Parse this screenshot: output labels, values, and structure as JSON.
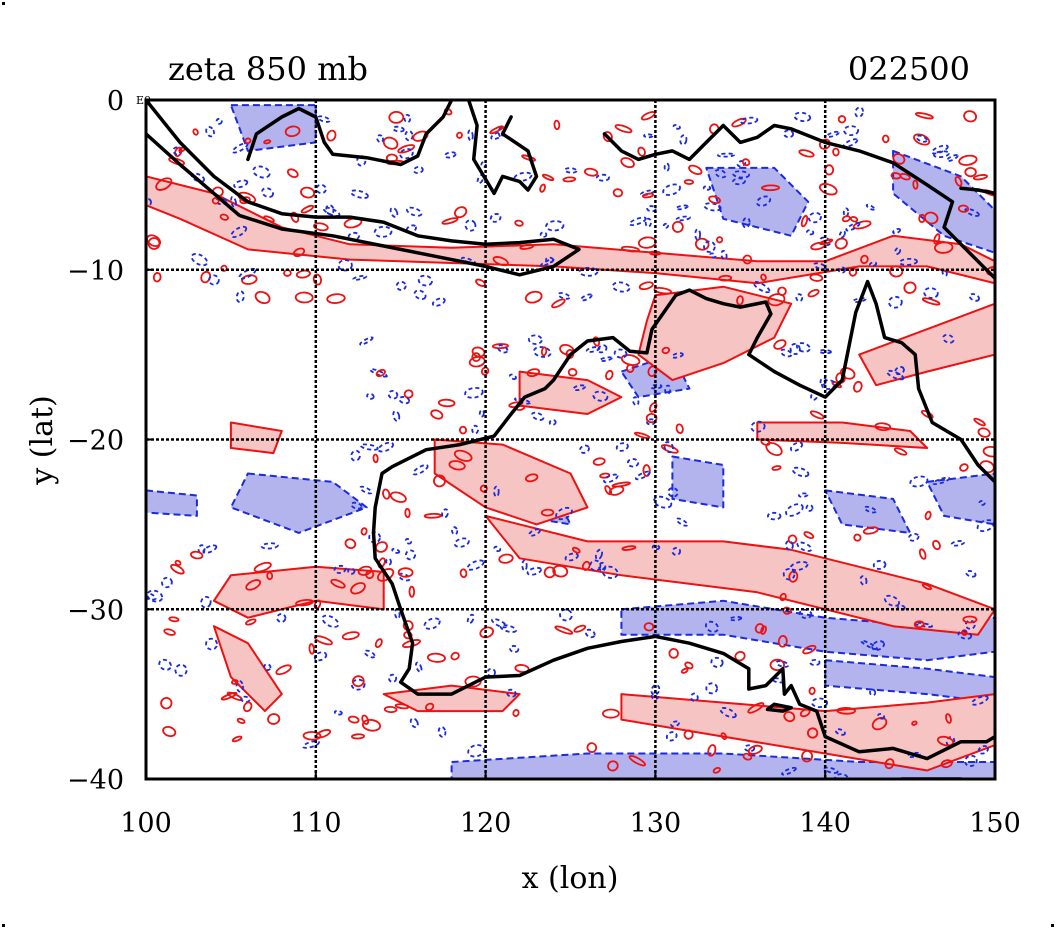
{
  "title_left": "zeta 850 mb",
  "title_right": "022500",
  "corner_label": "E0",
  "colors": {
    "positive_line": "#ee1111",
    "positive_fill": "#f7c4c4",
    "negative_line": "#1a2bdd",
    "negative_fill": "#b3b3ee",
    "coast": "#000000",
    "grid": "#000000"
  },
  "chart_data": {
    "type": "contour-map",
    "xlabel": "x (lon)",
    "ylabel": "y (lat)",
    "xlim": [
      100,
      150
    ],
    "ylim": [
      -40,
      0
    ],
    "xticks": [
      "100",
      "110",
      "120",
      "130",
      "140",
      "150"
    ],
    "yticks": [
      "0",
      "−10",
      "−20",
      "−30",
      "−40"
    ],
    "grid": true,
    "positive_regions": [
      [
        [
          100,
          -4.5
        ],
        [
          104,
          -5.5
        ],
        [
          108,
          -7.5
        ],
        [
          112,
          -8.5
        ],
        [
          118,
          -8.7
        ],
        [
          124,
          -8.5
        ],
        [
          130,
          -9.0
        ],
        [
          136,
          -9.5
        ],
        [
          140,
          -9.5
        ],
        [
          144,
          -8.0
        ],
        [
          148,
          -8.5
        ],
        [
          150,
          -9.5
        ],
        [
          150,
          -10.8
        ],
        [
          146,
          -9.8
        ],
        [
          142,
          -9.8
        ],
        [
          136,
          -10.8
        ],
        [
          130,
          -10.2
        ],
        [
          124,
          -9.8
        ],
        [
          118,
          -9.6
        ],
        [
          112,
          -9.4
        ],
        [
          106,
          -8.8
        ],
        [
          102,
          -7.0
        ],
        [
          100,
          -6.2
        ]
      ],
      [
        [
          130,
          -11.5
        ],
        [
          134,
          -11.0
        ],
        [
          138,
          -12.0
        ],
        [
          137,
          -14.0
        ],
        [
          134,
          -15.5
        ],
        [
          131,
          -16.5
        ],
        [
          129,
          -15.0
        ],
        [
          129.5,
          -13.0
        ]
      ],
      [
        [
          142,
          -15.0
        ],
        [
          146,
          -13.5
        ],
        [
          150,
          -12.0
        ],
        [
          150,
          -15.0
        ],
        [
          146,
          -16.0
        ],
        [
          143,
          -16.8
        ]
      ],
      [
        [
          117,
          -20.0
        ],
        [
          121,
          -20.3
        ],
        [
          125,
          -22.0
        ],
        [
          126,
          -24.0
        ],
        [
          123,
          -25.0
        ],
        [
          120,
          -24.0
        ],
        [
          117,
          -22.0
        ]
      ],
      [
        [
          105,
          -28.0
        ],
        [
          110,
          -27.5
        ],
        [
          114,
          -27.8
        ],
        [
          114,
          -30.0
        ],
        [
          110,
          -29.5
        ],
        [
          106,
          -30.5
        ],
        [
          104,
          -29.5
        ]
      ],
      [
        [
          104,
          -31.0
        ],
        [
          106,
          -32.0
        ],
        [
          108,
          -35.0
        ],
        [
          107,
          -36.0
        ],
        [
          105,
          -34.0
        ]
      ],
      [
        [
          105,
          -19.0
        ],
        [
          108,
          -19.5
        ],
        [
          107.5,
          -20.8
        ],
        [
          105,
          -20.5
        ]
      ],
      [
        [
          114,
          -35.0
        ],
        [
          118,
          -34.5
        ],
        [
          122,
          -35.0
        ],
        [
          121,
          -36.0
        ],
        [
          116,
          -36.0
        ]
      ],
      [
        [
          120,
          -24.5
        ],
        [
          126,
          -26.0
        ],
        [
          134,
          -26.0
        ],
        [
          138,
          -26.5
        ],
        [
          146,
          -28.5
        ],
        [
          150,
          -30.0
        ],
        [
          149,
          -31.5
        ],
        [
          144,
          -31.0
        ],
        [
          136,
          -29.0
        ],
        [
          128,
          -28.0
        ],
        [
          122,
          -27.0
        ]
      ],
      [
        [
          128,
          -35.0
        ],
        [
          134,
          -35.5
        ],
        [
          140,
          -36.0
        ],
        [
          146,
          -35.5
        ],
        [
          150,
          -35.0
        ],
        [
          150,
          -38.0
        ],
        [
          146,
          -39.5
        ],
        [
          140,
          -38.5
        ],
        [
          134,
          -37.5
        ],
        [
          128,
          -36.5
        ]
      ],
      [
        [
          136,
          -19.0
        ],
        [
          141,
          -19.0
        ],
        [
          145,
          -19.5
        ],
        [
          146,
          -20.5
        ],
        [
          141,
          -20.2
        ],
        [
          136,
          -20.0
        ]
      ],
      [
        [
          122,
          -16.0
        ],
        [
          126,
          -16.5
        ],
        [
          128,
          -17.5
        ],
        [
          126,
          -18.5
        ],
        [
          122,
          -18.0
        ]
      ]
    ],
    "negative_regions": [
      [
        [
          105,
          -0.3
        ],
        [
          110,
          -0.3
        ],
        [
          110,
          -2.5
        ],
        [
          106,
          -3.0
        ]
      ],
      [
        [
          133,
          -4.0
        ],
        [
          137,
          -4.0
        ],
        [
          139,
          -6.0
        ],
        [
          138,
          -8.0
        ],
        [
          134,
          -7.0
        ]
      ],
      [
        [
          106,
          -22.0
        ],
        [
          111,
          -22.5
        ],
        [
          113,
          -24.0
        ],
        [
          109,
          -25.5
        ],
        [
          105,
          -24.0
        ]
      ],
      [
        [
          100,
          -23.0
        ],
        [
          103,
          -23.3
        ],
        [
          103,
          -24.5
        ],
        [
          100,
          -24.3
        ]
      ],
      [
        [
          120,
          -22.0
        ],
        [
          124,
          -23.0
        ],
        [
          125,
          -25.0
        ],
        [
          122,
          -24.5
        ],
        [
          120,
          -23.5
        ]
      ],
      [
        [
          128,
          -30.0
        ],
        [
          134,
          -29.5
        ],
        [
          140,
          -30.5
        ],
        [
          146,
          -31.0
        ],
        [
          150,
          -30.5
        ],
        [
          150,
          -32.5
        ],
        [
          146,
          -33.0
        ],
        [
          140,
          -32.5
        ],
        [
          134,
          -31.5
        ],
        [
          128,
          -31.5
        ]
      ],
      [
        [
          140,
          -33.0
        ],
        [
          146,
          -33.5
        ],
        [
          150,
          -34.0
        ],
        [
          150,
          -35.5
        ],
        [
          146,
          -35.0
        ],
        [
          140,
          -34.5
        ]
      ],
      [
        [
          118,
          -39.0
        ],
        [
          126,
          -38.5
        ],
        [
          134,
          -38.5
        ],
        [
          142,
          -39.0
        ],
        [
          150,
          -39.0
        ],
        [
          150,
          -40.0
        ],
        [
          118,
          -40.0
        ]
      ],
      [
        [
          128,
          -16.0
        ],
        [
          131,
          -15.0
        ],
        [
          132,
          -17.0
        ],
        [
          129,
          -17.5
        ]
      ],
      [
        [
          131,
          -21.0
        ],
        [
          134,
          -21.5
        ],
        [
          134,
          -24.0
        ],
        [
          131,
          -23.5
        ]
      ],
      [
        [
          140,
          -23.0
        ],
        [
          144,
          -23.5
        ],
        [
          145,
          -25.5
        ],
        [
          141,
          -25.0
        ]
      ],
      [
        [
          146,
          -22.5
        ],
        [
          150,
          -22.0
        ],
        [
          150,
          -25.0
        ],
        [
          147,
          -24.5
        ]
      ],
      [
        [
          144,
          -3.0
        ],
        [
          148,
          -4.5
        ],
        [
          150,
          -6.5
        ],
        [
          150,
          -9.0
        ],
        [
          147,
          -8.0
        ],
        [
          144,
          -5.5
        ]
      ]
    ],
    "coastlines": [
      [
        [
          100,
          0
        ],
        [
          102,
          -2.5
        ],
        [
          104,
          -4.5
        ],
        [
          106,
          -6.0
        ],
        [
          108,
          -6.7
        ],
        [
          110,
          -6.9
        ],
        [
          112,
          -6.9
        ],
        [
          114,
          -7.2
        ],
        [
          116,
          -8.0
        ],
        [
          118,
          -8.3
        ],
        [
          120,
          -8.5
        ],
        [
          122,
          -8.4
        ],
        [
          124,
          -8.2
        ],
        [
          125.5,
          -8.8
        ],
        [
          124,
          -9.8
        ],
        [
          122,
          -10.3
        ],
        [
          120,
          -9.8
        ],
        [
          117,
          -9.2
        ],
        [
          114,
          -8.6
        ],
        [
          111,
          -8.0
        ],
        [
          108,
          -7.6
        ],
        [
          105.5,
          -6.8
        ],
        [
          104,
          -5.5
        ],
        [
          102,
          -3.8
        ],
        [
          100,
          -2.0
        ]
      ],
      [
        [
          106,
          -3.5
        ],
        [
          106.5,
          -2.0
        ],
        [
          108,
          -1.0
        ],
        [
          109,
          -0.5
        ],
        [
          110,
          -1.0
        ],
        [
          110.5,
          -2.5
        ],
        [
          111,
          -3.2
        ],
        [
          113,
          -3.4
        ],
        [
          115,
          -3.8
        ],
        [
          116,
          -3.3
        ],
        [
          116.5,
          -2.0
        ],
        [
          117.5,
          -1.0
        ],
        [
          118,
          0
        ]
      ],
      [
        [
          119,
          0
        ],
        [
          119.5,
          -1.5
        ],
        [
          119.3,
          -3.5
        ],
        [
          120.5,
          -5.5
        ],
        [
          121,
          -4.5
        ],
        [
          122,
          -4.8
        ],
        [
          122.5,
          -5.3
        ],
        [
          123,
          -4.5
        ],
        [
          122.5,
          -3.0
        ],
        [
          121,
          -2.0
        ],
        [
          121.5,
          -1.0
        ]
      ],
      [
        [
          127,
          -2.0
        ],
        [
          128,
          -3.0
        ],
        [
          129,
          -3.5
        ],
        [
          130,
          -3.2
        ],
        [
          131,
          -3.0
        ],
        [
          132,
          -3.5
        ],
        [
          133,
          -2.5
        ],
        [
          134,
          -1.5
        ],
        [
          135,
          -2.5
        ],
        [
          136,
          -2.2
        ],
        [
          137,
          -1.5
        ],
        [
          138,
          -1.7
        ],
        [
          140,
          -2.5
        ],
        [
          142,
          -3.0
        ],
        [
          144,
          -3.7
        ],
        [
          146,
          -5.0
        ],
        [
          147.5,
          -6.0
        ],
        [
          147,
          -7.5
        ],
        [
          148,
          -8.5
        ],
        [
          149.5,
          -10.0
        ],
        [
          150,
          -10.5
        ]
      ],
      [
        [
          150,
          -5.5
        ],
        [
          149,
          -5.3
        ],
        [
          148,
          -5.2
        ]
      ],
      [
        [
          131.2,
          -11.5
        ],
        [
          132,
          -11.2
        ],
        [
          133,
          -11.7
        ],
        [
          134,
          -12.0
        ],
        [
          135,
          -12.2
        ],
        [
          136.5,
          -11.9
        ],
        [
          136.8,
          -12.6
        ],
        [
          136,
          -14.0
        ],
        [
          135.5,
          -15.0
        ],
        [
          137,
          -16.0
        ],
        [
          138.5,
          -16.8
        ],
        [
          140,
          -17.5
        ],
        [
          141,
          -16.5
        ],
        [
          141.5,
          -14.0
        ],
        [
          141.8,
          -12.5
        ],
        [
          142.5,
          -10.7
        ],
        [
          143,
          -12.0
        ],
        [
          143.5,
          -14.0
        ],
        [
          144.5,
          -14.3
        ],
        [
          145.3,
          -15.0
        ],
        [
          145.5,
          -17.0
        ],
        [
          146.3,
          -19.0
        ],
        [
          148,
          -20.0
        ],
        [
          149,
          -21.5
        ],
        [
          150,
          -22.5
        ]
      ],
      [
        [
          150,
          -37.5
        ],
        [
          149.5,
          -37.8
        ],
        [
          148,
          -37.8
        ],
        [
          146,
          -38.8
        ],
        [
          144,
          -38.2
        ],
        [
          142,
          -38.4
        ],
        [
          140,
          -37.5
        ],
        [
          139.5,
          -36.0
        ],
        [
          138.5,
          -35.6
        ],
        [
          138,
          -34.5
        ],
        [
          137.6,
          -35.0
        ],
        [
          137.5,
          -33.5
        ],
        [
          136.5,
          -34.5
        ],
        [
          135.5,
          -34.7
        ],
        [
          135.5,
          -33.5
        ],
        [
          134,
          -32.6
        ],
        [
          132,
          -32.0
        ],
        [
          130,
          -31.6
        ],
        [
          128,
          -31.9
        ],
        [
          126,
          -32.3
        ],
        [
          124,
          -33.0
        ],
        [
          122,
          -33.9
        ],
        [
          120,
          -34.0
        ],
        [
          118,
          -35.0
        ],
        [
          116,
          -35.0
        ],
        [
          115,
          -34.3
        ],
        [
          115.5,
          -33.5
        ],
        [
          115.7,
          -32.0
        ],
        [
          115,
          -30.0
        ],
        [
          114.5,
          -28.5
        ],
        [
          113.5,
          -27.0
        ],
        [
          113.4,
          -25.5
        ],
        [
          113.5,
          -24.0
        ],
        [
          113.9,
          -22.0
        ],
        [
          114.5,
          -21.6
        ],
        [
          116.5,
          -20.6
        ],
        [
          118.5,
          -20.3
        ],
        [
          120.5,
          -19.8
        ],
        [
          121.5,
          -18.5
        ],
        [
          122.3,
          -17.5
        ],
        [
          123.5,
          -17.0
        ],
        [
          124,
          -16.5
        ],
        [
          125,
          -15.0
        ],
        [
          126,
          -14.2
        ],
        [
          127.5,
          -14.0
        ],
        [
          128.5,
          -14.8
        ],
        [
          129.5,
          -14.9
        ],
        [
          129.8,
          -13.5
        ],
        [
          130.5,
          -12.5
        ],
        [
          131.2,
          -11.5
        ]
      ],
      [
        [
          144.5,
          -40.0
        ],
        [
          145.5,
          -40.0
        ],
        [
          148,
          -40.0
        ],
        [
          148.3,
          -41.0
        ]
      ],
      [
        [
          137,
          -35.6
        ],
        [
          138,
          -35.8
        ],
        [
          137.5,
          -36.0
        ],
        [
          136.6,
          -35.9
        ],
        [
          137,
          -35.6
        ]
      ]
    ]
  }
}
